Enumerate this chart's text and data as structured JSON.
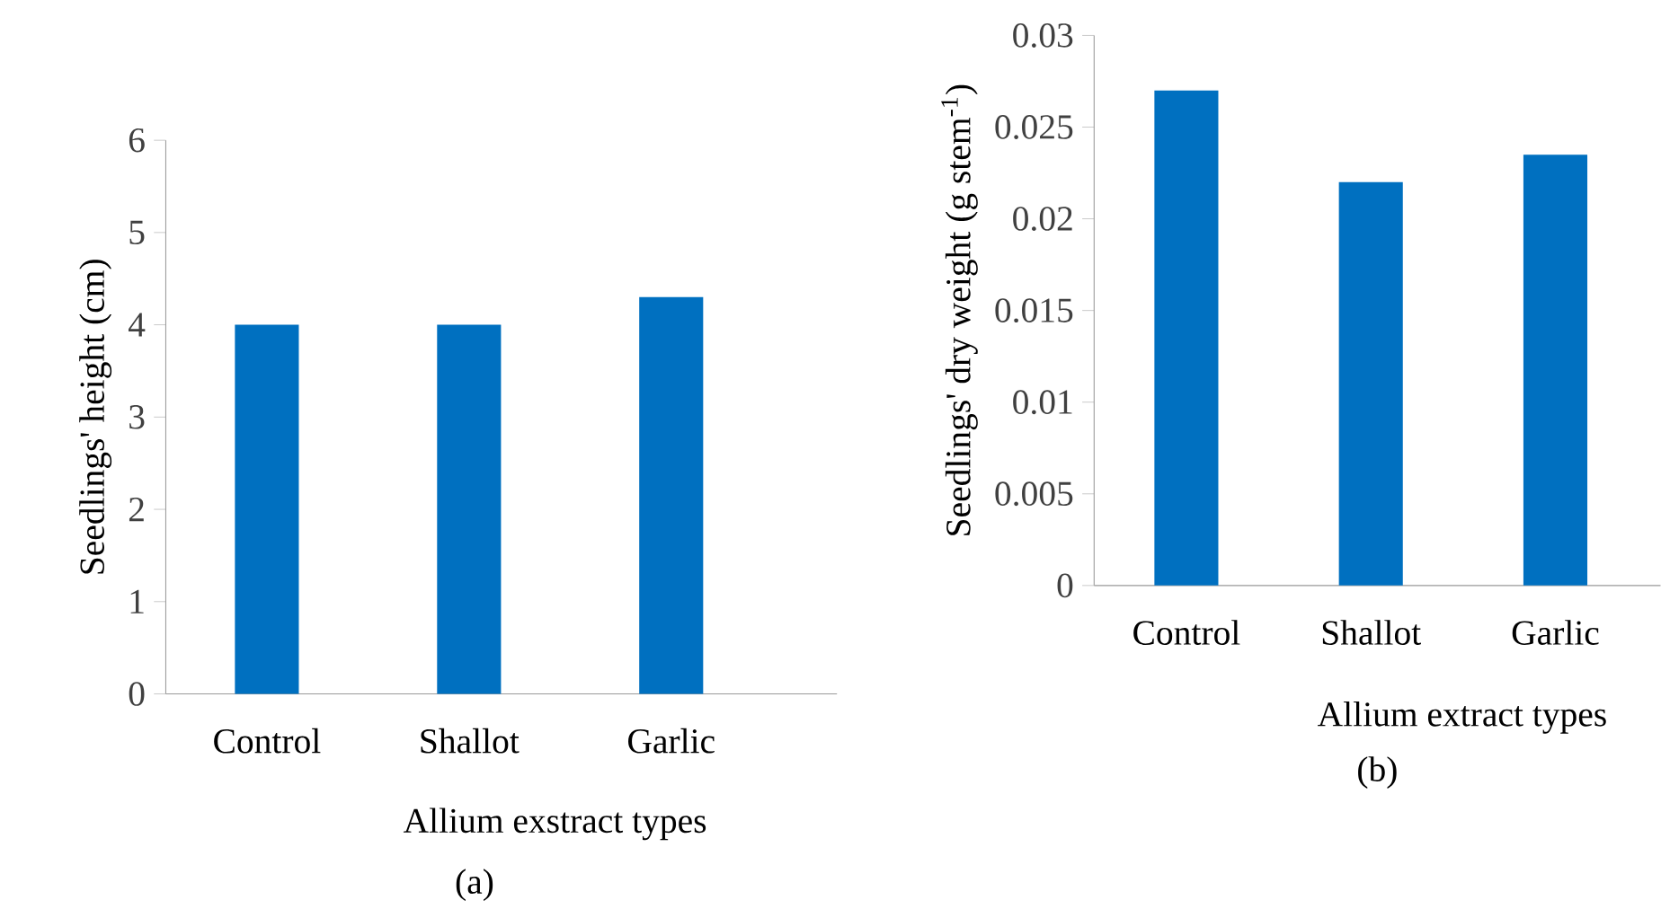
{
  "chart_data": [
    {
      "type": "bar",
      "categories": [
        "Control",
        "Shallot",
        "Garlic"
      ],
      "values": [
        4,
        4,
        4.3
      ],
      "color": "#0070c0",
      "ylim": [
        0,
        6
      ],
      "yticks": [
        0,
        1,
        2,
        3,
        4,
        5,
        6
      ],
      "ylabel": "Seedlings' height (cm)",
      "xlabel": "Allium exstract types",
      "annotations": [
        "(a)"
      ]
    },
    {
      "type": "bar",
      "categories": [
        "Control",
        "Shallot",
        "Garlic"
      ],
      "values": [
        0.027,
        0.022,
        0.0235
      ],
      "color": "#0070c0",
      "ylim": [
        0,
        0.03
      ],
      "yticks": [
        0,
        0.005,
        0.01,
        0.015,
        0.02,
        0.025,
        0.03
      ],
      "ylabel": "Seedlings' dry weight (g stem$^{-1}$)",
      "xlabel": "Allium extract types",
      "annotations": [
        "(b)"
      ]
    }
  ]
}
